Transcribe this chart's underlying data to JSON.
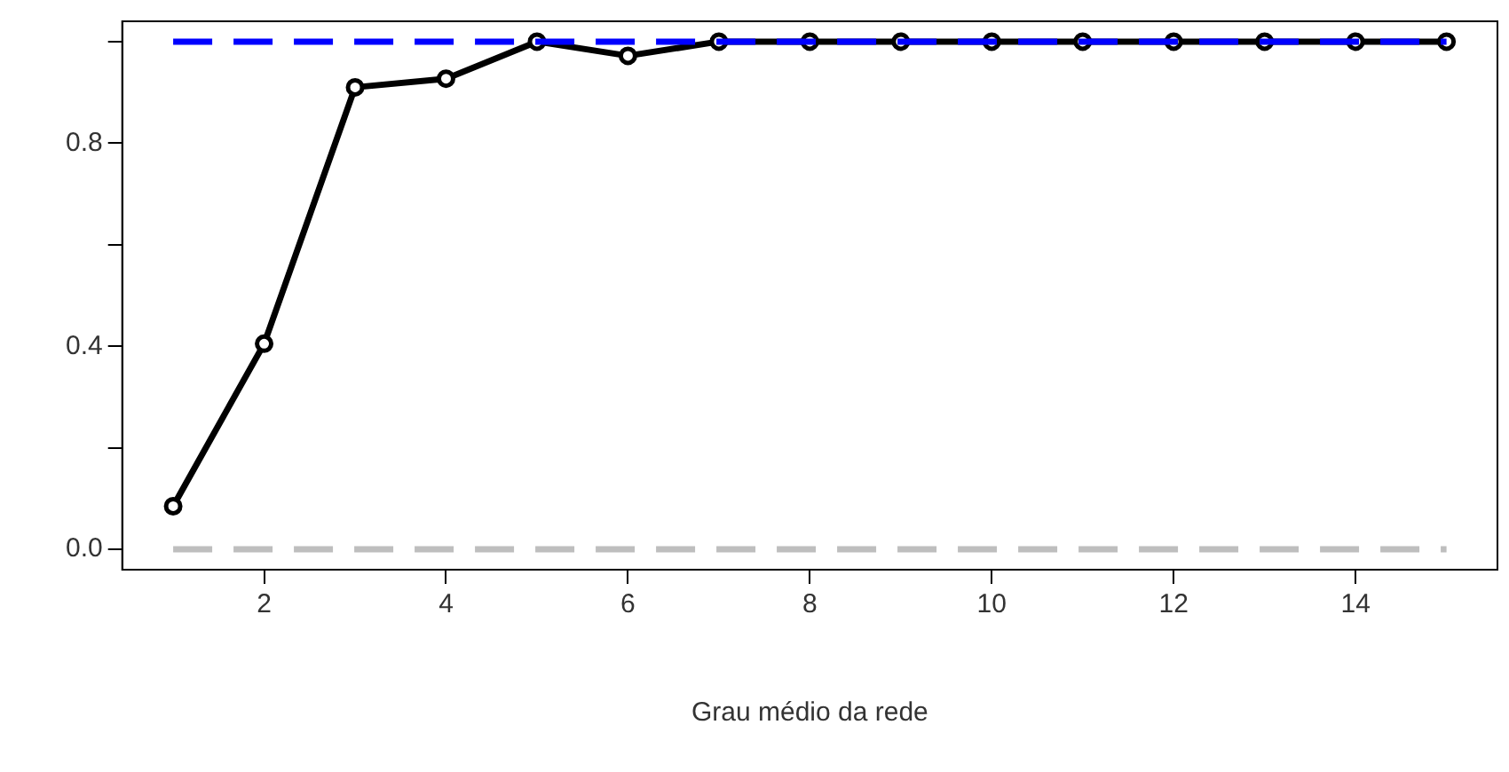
{
  "chart_data": {
    "type": "line",
    "xlabel": "Grau médio da rede",
    "x": [
      1,
      2,
      3,
      4,
      5,
      6,
      7,
      8,
      9,
      10,
      11,
      12,
      13,
      14,
      15
    ],
    "series": [
      {
        "color": "#000000",
        "marker": "circle",
        "line_style": "solid",
        "values": [
          0.085,
          0.405,
          0.91,
          0.927,
          1.0,
          0.972,
          1.0,
          1.0,
          1.0,
          1.0,
          1.0,
          1.0,
          1.0,
          1.0,
          1.0
        ]
      },
      {
        "color": "#0000ff",
        "marker": "none",
        "line_style": "dashed",
        "values": [
          1,
          1,
          1,
          1,
          1,
          1,
          1,
          1,
          1,
          1,
          1,
          1,
          1,
          1,
          1
        ]
      },
      {
        "color": "#bebebe",
        "marker": "none",
        "line_style": "dashed",
        "values": [
          0,
          0,
          0,
          0,
          0,
          0,
          0,
          0,
          0,
          0,
          0,
          0,
          0,
          0,
          0
        ]
      }
    ],
    "xlim": [
      0.44,
      15.56
    ],
    "ylim": [
      -0.04,
      1.04
    ],
    "xticks": [
      2,
      4,
      6,
      8,
      10,
      12,
      14
    ],
    "yticks": [
      {
        "value": 0,
        "label": "0.0"
      },
      {
        "value": 0.2,
        "label": null
      },
      {
        "value": 0.4,
        "label": "0.4"
      },
      {
        "value": 0.6,
        "label": null
      },
      {
        "value": 0.8,
        "label": "0.8"
      },
      {
        "value": 1.0,
        "label": null
      }
    ],
    "legend": false
  }
}
